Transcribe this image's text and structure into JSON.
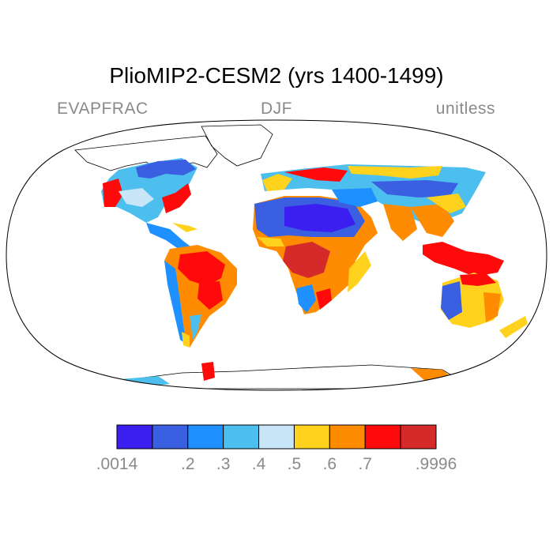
{
  "title": "PlioMIP2-CESM2 (yrs 1400-1499)",
  "subtitle": {
    "left": "EVAPFRAC",
    "center": "DJF",
    "right": "unitless"
  },
  "colorbar": {
    "colors": [
      "#3b1ff0",
      "#3a5fe0",
      "#1e90ff",
      "#4cbfee",
      "#c8e6f7",
      "#ffd21e",
      "#ff8c00",
      "#ff0a0a",
      "#d42a2a"
    ],
    "labels": [
      ".0014",
      ".2",
      ".3",
      ".4",
      ".5",
      ".6",
      ".7",
      ".9996"
    ]
  },
  "colors": {
    "title": "#000000",
    "subtitle": "#8a8a8a",
    "coastline": "#000000"
  }
}
